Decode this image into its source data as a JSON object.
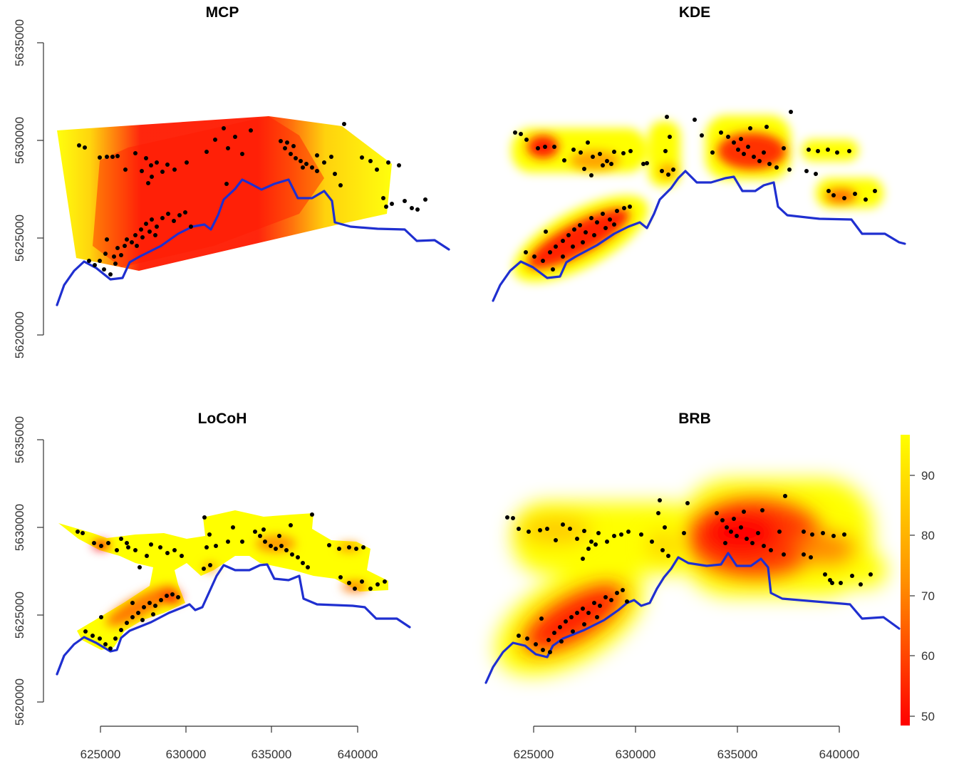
{
  "chart_data": [
    {
      "type": "scatter",
      "title": "MCP",
      "xlabel": "",
      "ylabel": "",
      "xlim": [
        622500,
        643500
      ],
      "ylim": [
        5618500,
        5636000
      ],
      "x_axis_shown": false,
      "y_axis_shown": true,
      "yticks": [
        5620000,
        5625000,
        5630000,
        5635000
      ],
      "ytick_labels": [
        "5620000",
        "5625000",
        "5630000",
        "5635000"
      ],
      "surface": "minimum convex polygon isopleths 50-100%, red (core) to yellow (outer)"
    },
    {
      "type": "scatter",
      "title": "KDE",
      "xlabel": "",
      "ylabel": "",
      "xlim": [
        622500,
        643500
      ],
      "ylim": [
        5618500,
        5636000
      ],
      "x_axis_shown": false,
      "y_axis_shown": false,
      "surface": "kernel density utilization distribution, red (core) to yellow (outer)"
    },
    {
      "type": "scatter",
      "title": "LoCoH",
      "xlabel": "",
      "ylabel": "",
      "xlim": [
        622500,
        643500
      ],
      "ylim": [
        5618500,
        5636000
      ],
      "x_axis_shown": true,
      "y_axis_shown": true,
      "xticks": [
        625000,
        630000,
        635000,
        640000
      ],
      "xtick_labels": [
        "625000",
        "630000",
        "635000",
        "640000"
      ],
      "yticks": [
        5620000,
        5625000,
        5630000,
        5635000
      ],
      "ytick_labels": [
        "5620000",
        "5625000",
        "5630000",
        "5635000"
      ],
      "surface": "local convex hull isopleths, red (core) to yellow (outer)"
    },
    {
      "type": "scatter",
      "title": "BRB",
      "xlabel": "",
      "ylabel": "",
      "xlim": [
        622500,
        643500
      ],
      "ylim": [
        5618500,
        5636000
      ],
      "x_axis_shown": true,
      "y_axis_shown": false,
      "xticks": [
        625000,
        630000,
        635000,
        640000
      ],
      "xtick_labels": [
        "625000",
        "630000",
        "635000",
        "640000"
      ],
      "surface": "biased random bridge utilization distribution, red (core) to yellow (outer)",
      "legend": {
        "type": "colorbar",
        "placement": "right",
        "range": [
          47,
          97
        ],
        "ticks": [
          50,
          60,
          70,
          80,
          90
        ],
        "tick_labels": [
          "50",
          "60",
          "70",
          "80",
          "90"
        ],
        "color_low": "#ff0000",
        "color_high": "#ffff00"
      }
    }
  ],
  "colors": {
    "core": "#ff0000",
    "mid": "#ff8c00",
    "outer": "#ffff00",
    "river": "#1f2fd0",
    "points": "#000000"
  }
}
